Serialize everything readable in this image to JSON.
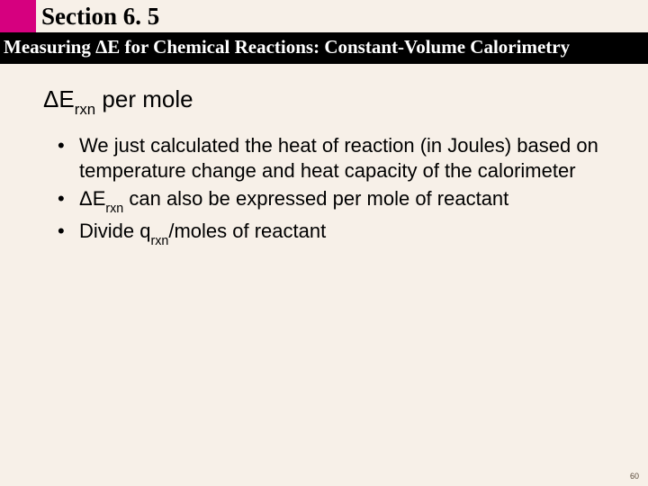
{
  "colors": {
    "background": "#f7f0e8",
    "accent": "#d6007f",
    "subtitle_bg": "#000000",
    "subtitle_fg": "#ffffff",
    "text": "#000000",
    "page_num": "#5a4a3a"
  },
  "header": {
    "section_label": "Section 6. 5",
    "subtitle": "Measuring ΔE for Chemical Reactions: Constant-Volume Calorimetry"
  },
  "content": {
    "heading_prefix": "ΔE",
    "heading_sub": "rxn",
    "heading_suffix": " per mole",
    "bullets": [
      {
        "text": "We just calculated the heat of reaction (in Joules) based on temperature change and heat capacity of the calorimeter"
      },
      {
        "prefix": "ΔE",
        "sub": "rxn",
        "suffix": " can also be expressed per mole of reactant"
      },
      {
        "prefix": "Divide q",
        "sub": "rxn",
        "suffix": "/moles of reactant"
      }
    ]
  },
  "page_number": "60"
}
